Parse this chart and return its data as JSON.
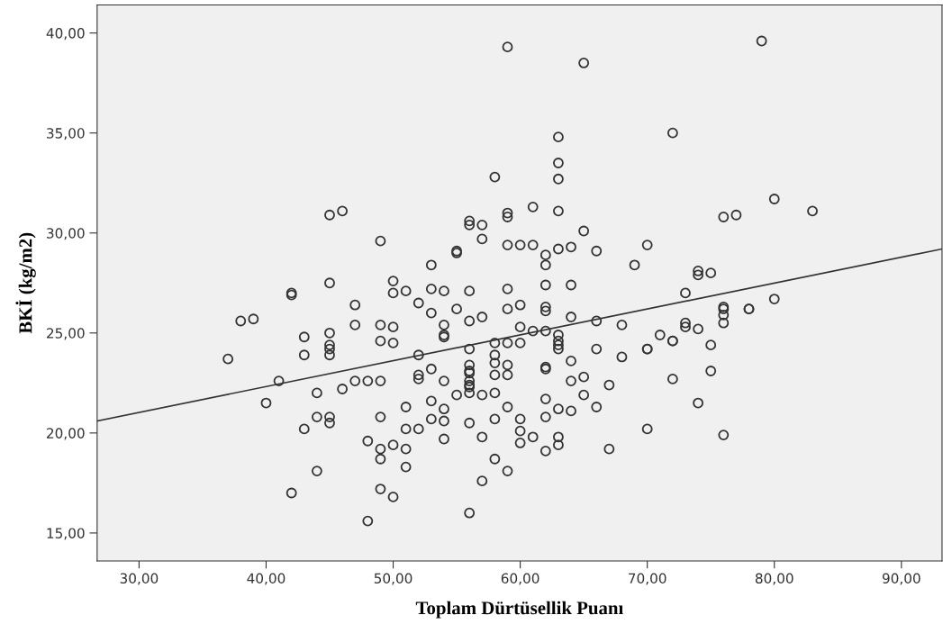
{
  "chart_data": {
    "type": "scatter",
    "xlabel": "Toplam Dürtüsellik Puanı",
    "ylabel": "BKİ (kg/m2)",
    "xlim": [
      26.7,
      93.2
    ],
    "ylim": [
      13.6,
      41.4
    ],
    "xticks": [
      {
        "value": 30,
        "label": "30,00"
      },
      {
        "value": 40,
        "label": "40,00"
      },
      {
        "value": 50,
        "label": "50,00"
      },
      {
        "value": 60,
        "label": "60,00"
      },
      {
        "value": 70,
        "label": "70,00"
      },
      {
        "value": 80,
        "label": "80,00"
      },
      {
        "value": 90,
        "label": "90,00"
      }
    ],
    "yticks": [
      {
        "value": 15,
        "label": "15,00"
      },
      {
        "value": 20,
        "label": "20,00"
      },
      {
        "value": 25,
        "label": "25,00"
      },
      {
        "value": 30,
        "label": "30,00"
      },
      {
        "value": 35,
        "label": "35,00"
      },
      {
        "value": 40,
        "label": "40,00"
      }
    ],
    "grid": false,
    "legend": false,
    "marker": "circle",
    "series": [
      {
        "color": "#333333",
        "x": [
          37,
          38,
          39,
          40,
          41,
          42,
          42,
          42,
          43,
          43,
          43,
          44,
          44,
          44,
          45,
          45,
          45,
          45,
          45,
          45,
          45,
          45,
          46,
          46,
          47,
          47,
          47,
          48,
          48,
          48,
          49,
          49,
          49,
          49,
          49,
          49,
          49,
          49,
          50,
          50,
          50,
          50,
          50,
          50,
          51,
          51,
          51,
          51,
          51,
          52,
          52,
          52,
          52,
          52,
          53,
          53,
          53,
          53,
          53,
          53,
          54,
          54,
          54,
          54,
          54,
          54,
          54,
          54,
          55,
          55,
          55,
          55,
          56,
          56,
          56,
          56,
          56,
          56,
          56,
          56,
          56,
          56,
          56,
          56,
          56,
          56,
          57,
          57,
          57,
          57,
          57,
          57,
          58,
          58,
          58,
          58,
          58,
          58,
          58,
          58,
          59,
          59,
          59,
          59,
          59,
          59,
          59,
          59,
          59,
          59,
          59,
          60,
          60,
          60,
          60,
          60,
          60,
          60,
          61,
          61,
          61,
          61,
          62,
          62,
          62,
          62,
          62,
          62,
          62,
          62,
          62,
          62,
          62,
          63,
          63,
          63,
          63,
          63,
          63,
          63,
          63,
          63,
          63,
          63,
          63,
          64,
          64,
          64,
          64,
          64,
          64,
          65,
          65,
          65,
          65,
          66,
          66,
          66,
          66,
          67,
          67,
          68,
          68,
          69,
          70,
          70,
          70,
          70,
          71,
          72,
          72,
          72,
          72,
          73,
          73,
          73,
          74,
          74,
          74,
          74,
          75,
          75,
          75,
          76,
          76,
          76,
          76,
          76,
          76,
          77,
          78,
          78,
          79,
          80,
          80,
          83
        ],
        "values": [
          23.7,
          25.6,
          25.7,
          21.5,
          22.6,
          27.0,
          26.9,
          17.0,
          24.8,
          23.9,
          20.2,
          22.0,
          20.8,
          18.1,
          30.9,
          27.5,
          25.0,
          24.4,
          24.2,
          23.9,
          20.8,
          20.5,
          31.1,
          22.2,
          26.4,
          25.4,
          22.6,
          22.6,
          19.6,
          15.6,
          29.6,
          25.4,
          24.6,
          22.6,
          20.8,
          19.2,
          18.7,
          17.2,
          27.6,
          27.0,
          25.3,
          24.5,
          19.4,
          16.8,
          27.1,
          21.3,
          20.2,
          19.2,
          18.3,
          26.5,
          23.9,
          22.9,
          22.7,
          20.2,
          28.4,
          27.2,
          26.0,
          23.2,
          21.6,
          20.7,
          27.1,
          25.4,
          24.9,
          24.8,
          22.6,
          21.2,
          20.6,
          19.7,
          29.1,
          29.0,
          26.2,
          21.9,
          30.6,
          30.4,
          27.1,
          25.6,
          24.2,
          23.4,
          23.1,
          23.0,
          22.6,
          22.4,
          22.3,
          22.0,
          20.5,
          16.0,
          30.4,
          29.7,
          25.8,
          21.9,
          19.8,
          17.6,
          32.8,
          24.5,
          23.9,
          23.5,
          22.9,
          22.0,
          20.7,
          18.7,
          39.3,
          31.0,
          30.8,
          29.4,
          27.2,
          26.2,
          24.5,
          23.4,
          22.9,
          21.3,
          18.1,
          29.4,
          26.4,
          25.3,
          24.5,
          20.7,
          20.1,
          19.5,
          31.3,
          29.4,
          25.1,
          19.8,
          28.9,
          28.4,
          27.4,
          26.3,
          26.1,
          25.1,
          23.3,
          23.2,
          21.7,
          20.8,
          19.1,
          34.8,
          33.5,
          32.7,
          31.1,
          29.2,
          24.9,
          24.6,
          24.4,
          24.2,
          21.2,
          19.8,
          19.4,
          29.3,
          27.4,
          25.8,
          23.6,
          22.6,
          21.1,
          38.5,
          30.1,
          22.8,
          21.9,
          29.1,
          25.6,
          24.2,
          21.3,
          22.4,
          19.2,
          25.4,
          23.8,
          28.4,
          29.4,
          24.2,
          24.2,
          20.2,
          24.9,
          35.0,
          24.6,
          24.6,
          22.7,
          27.0,
          25.5,
          25.3,
          28.1,
          27.9,
          25.2,
          21.5,
          28.0,
          24.4,
          23.1,
          30.8,
          26.3,
          26.2,
          25.9,
          25.5,
          19.9,
          30.9,
          26.2,
          26.2,
          39.6,
          31.7,
          26.7,
          31.1
        ]
      },
      {
        "type": "line",
        "color": "#333333",
        "marker": "none",
        "line_style": "solid",
        "x": [
          26.7,
          93.2
        ],
        "values": [
          20.6,
          29.2
        ]
      }
    ]
  }
}
